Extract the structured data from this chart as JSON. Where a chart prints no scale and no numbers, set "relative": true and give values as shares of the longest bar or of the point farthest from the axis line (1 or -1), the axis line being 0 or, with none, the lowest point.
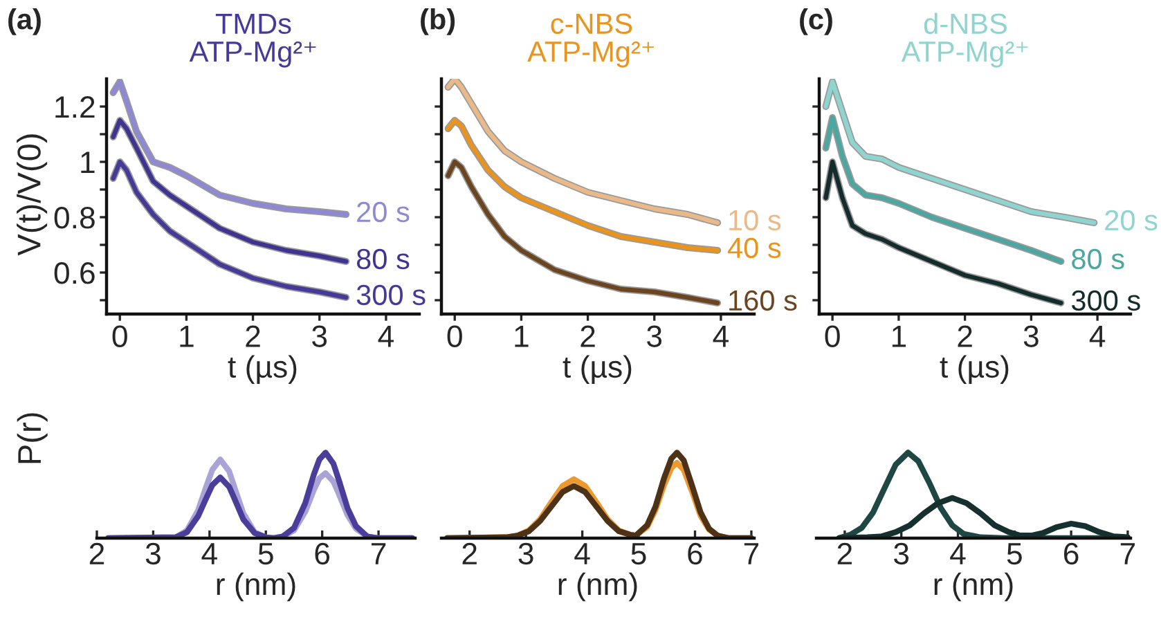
{
  "chart_data": [
    {
      "type": "line",
      "title": "TMDs\nATP-Mg²⁺",
      "annotations": [
        "(a)"
      ],
      "xlabel": "t (µs)",
      "ylabel": "V(t)/V(0)",
      "xlim": [
        -0.2,
        4.5
      ],
      "xticks": [
        0,
        1,
        2,
        3,
        4
      ],
      "ylim": [
        0.45,
        1.3
      ],
      "yticks": [
        {
          "value": 0.5,
          "label": null
        },
        0.6,
        {
          "value": 0.7,
          "label": null
        },
        0.8,
        {
          "value": 0.9,
          "label": null
        },
        1,
        {
          "value": 1.1,
          "label": null
        },
        1.2
      ],
      "series": [
        {
          "color": "#9a9a9a",
          "x": [
            -0.1,
            0,
            0.1,
            0.25,
            0.5,
            0.75,
            1,
            1.5,
            2,
            2.5,
            3,
            3.4
          ],
          "values": [
            1.25,
            1.29,
            1.22,
            1.11,
            1.0,
            0.98,
            0.95,
            0.88,
            0.85,
            0.83,
            0.82,
            0.81
          ]
        },
        {
          "name": "20 s",
          "color": "#8e89d2",
          "x": [
            -0.1,
            0,
            0.1,
            0.25,
            0.5,
            0.75,
            1,
            1.5,
            2,
            2.5,
            3,
            3.4
          ],
          "values": [
            1.25,
            1.29,
            1.22,
            1.11,
            1.0,
            0.98,
            0.95,
            0.88,
            0.85,
            0.83,
            0.82,
            0.81
          ]
        },
        {
          "color": "#9a9a9a",
          "x": [
            -0.1,
            0,
            0.1,
            0.25,
            0.5,
            0.75,
            1,
            1.5,
            2,
            2.5,
            3,
            3.4
          ],
          "values": [
            1.09,
            1.15,
            1.12,
            1.05,
            0.93,
            0.88,
            0.84,
            0.76,
            0.71,
            0.68,
            0.66,
            0.64
          ]
        },
        {
          "name": "80 s",
          "color": "#3f3590",
          "x": [
            -0.1,
            0,
            0.1,
            0.25,
            0.5,
            0.75,
            1,
            1.5,
            2,
            2.5,
            3,
            3.4
          ],
          "values": [
            1.09,
            1.15,
            1.12,
            1.05,
            0.93,
            0.88,
            0.84,
            0.76,
            0.71,
            0.68,
            0.66,
            0.64
          ]
        },
        {
          "color": "#9a9a9a",
          "x": [
            -0.1,
            0,
            0.1,
            0.25,
            0.5,
            0.75,
            1,
            1.5,
            2,
            2.5,
            3,
            3.4
          ],
          "values": [
            0.94,
            1.0,
            0.97,
            0.89,
            0.81,
            0.75,
            0.71,
            0.63,
            0.58,
            0.55,
            0.53,
            0.51
          ]
        },
        {
          "name": "300 s",
          "color": "#453a98",
          "x": [
            -0.1,
            0,
            0.1,
            0.25,
            0.5,
            0.75,
            1,
            1.5,
            2,
            2.5,
            3,
            3.4
          ],
          "values": [
            0.94,
            1.0,
            0.97,
            0.89,
            0.81,
            0.75,
            0.71,
            0.63,
            0.58,
            0.55,
            0.53,
            0.51
          ]
        }
      ]
    },
    {
      "type": "line",
      "title": "c-NBS\nATP-Mg²⁺",
      "annotations": [
        "(b)"
      ],
      "xlabel": "t (µs)",
      "xlim": [
        -0.2,
        4.5
      ],
      "xticks": [
        0,
        1,
        2,
        3,
        4
      ],
      "ylim": [
        0.45,
        1.3
      ],
      "yticks": [
        {
          "value": 0.5,
          "label": null
        },
        {
          "value": 0.6,
          "label": null
        },
        {
          "value": 0.7,
          "label": null
        },
        {
          "value": 0.8,
          "label": null
        },
        {
          "value": 0.9,
          "label": null
        },
        {
          "value": 1,
          "label": null
        },
        {
          "value": 1.1,
          "label": null
        },
        {
          "value": 1.2,
          "label": null
        }
      ],
      "tick_labels": "x",
      "series": [
        {
          "color": "#9a9a9a",
          "x": [
            -0.1,
            0,
            0.1,
            0.25,
            0.5,
            0.75,
            1,
            1.5,
            2,
            2.5,
            3,
            3.5,
            3.95
          ],
          "values": [
            1.27,
            1.3,
            1.27,
            1.21,
            1.11,
            1.04,
            1.0,
            0.94,
            0.89,
            0.86,
            0.83,
            0.81,
            0.78
          ]
        },
        {
          "name": "10 s",
          "color": "#eab98a",
          "x": [
            -0.1,
            0,
            0.1,
            0.25,
            0.5,
            0.75,
            1,
            1.5,
            2,
            2.5,
            3,
            3.5,
            3.95
          ],
          "values": [
            1.27,
            1.3,
            1.27,
            1.21,
            1.11,
            1.04,
            1.0,
            0.94,
            0.89,
            0.86,
            0.83,
            0.81,
            0.78
          ]
        },
        {
          "color": "#9a9a9a",
          "x": [
            -0.1,
            0,
            0.1,
            0.25,
            0.5,
            0.75,
            1,
            1.5,
            2,
            2.5,
            3,
            3.5,
            3.95
          ],
          "values": [
            1.12,
            1.15,
            1.13,
            1.06,
            0.97,
            0.91,
            0.87,
            0.82,
            0.77,
            0.73,
            0.71,
            0.69,
            0.68
          ]
        },
        {
          "name": "40 s",
          "color": "#e8941e",
          "x": [
            -0.1,
            0,
            0.1,
            0.25,
            0.5,
            0.75,
            1,
            1.5,
            2,
            2.5,
            3,
            3.5,
            3.95
          ],
          "values": [
            1.12,
            1.15,
            1.13,
            1.06,
            0.97,
            0.91,
            0.87,
            0.82,
            0.77,
            0.73,
            0.71,
            0.69,
            0.68
          ]
        },
        {
          "color": "#9a9a9a",
          "x": [
            -0.1,
            0,
            0.1,
            0.25,
            0.5,
            0.75,
            1,
            1.5,
            2,
            2.5,
            3,
            3.5,
            3.95
          ],
          "values": [
            0.95,
            1.0,
            0.98,
            0.91,
            0.81,
            0.73,
            0.68,
            0.61,
            0.57,
            0.54,
            0.53,
            0.51,
            0.49
          ]
        },
        {
          "name": "160 s",
          "color": "#6b4520",
          "x": [
            -0.1,
            0,
            0.1,
            0.25,
            0.5,
            0.75,
            1,
            1.5,
            2,
            2.5,
            3,
            3.5,
            3.95
          ],
          "values": [
            0.95,
            1.0,
            0.98,
            0.91,
            0.81,
            0.73,
            0.68,
            0.61,
            0.57,
            0.54,
            0.53,
            0.51,
            0.49
          ]
        }
      ]
    },
    {
      "type": "line",
      "title": "d-NBS\nATP-Mg²⁺",
      "annotations": [
        "(c)"
      ],
      "xlabel": "t (µs)",
      "xlim": [
        -0.2,
        4.5
      ],
      "xticks": [
        0,
        1,
        2,
        3,
        4
      ],
      "ylim": [
        0.45,
        1.3
      ],
      "yticks": [
        {
          "value": 0.5,
          "label": null
        },
        {
          "value": 0.6,
          "label": null
        },
        {
          "value": 0.7,
          "label": null
        },
        {
          "value": 0.8,
          "label": null
        },
        {
          "value": 0.9,
          "label": null
        },
        {
          "value": 1,
          "label": null
        },
        {
          "value": 1.1,
          "label": null
        },
        {
          "value": 1.2,
          "label": null
        }
      ],
      "tick_labels": "x",
      "series": [
        {
          "color": "#9a9a9a",
          "x": [
            -0.1,
            0,
            0.15,
            0.3,
            0.5,
            0.75,
            1,
            1.5,
            2,
            2.5,
            3,
            3.5,
            3.95
          ],
          "values": [
            1.2,
            1.29,
            1.18,
            1.07,
            1.02,
            1.01,
            0.98,
            0.94,
            0.9,
            0.86,
            0.82,
            0.8,
            0.78
          ]
        },
        {
          "name": "20 s",
          "color": "#8fd4ce",
          "x": [
            -0.1,
            0,
            0.15,
            0.3,
            0.5,
            0.75,
            1,
            1.5,
            2,
            2.5,
            3,
            3.5,
            3.95
          ],
          "values": [
            1.2,
            1.29,
            1.18,
            1.07,
            1.02,
            1.01,
            0.98,
            0.94,
            0.9,
            0.86,
            0.82,
            0.8,
            0.78
          ]
        },
        {
          "color": "#9a9a9a",
          "x": [
            -0.1,
            0,
            0.15,
            0.3,
            0.5,
            0.75,
            1,
            1.5,
            2,
            2.5,
            3,
            3.45
          ],
          "values": [
            1.05,
            1.16,
            1.02,
            0.92,
            0.88,
            0.87,
            0.85,
            0.8,
            0.76,
            0.72,
            0.68,
            0.64
          ]
        },
        {
          "name": "80 s",
          "color": "#4ea6a0",
          "x": [
            -0.1,
            0,
            0.15,
            0.3,
            0.5,
            0.75,
            1,
            1.5,
            2,
            2.5,
            3,
            3.45
          ],
          "values": [
            1.05,
            1.16,
            1.02,
            0.92,
            0.88,
            0.87,
            0.85,
            0.8,
            0.76,
            0.72,
            0.68,
            0.64
          ]
        },
        {
          "color": "#9a9a9a",
          "x": [
            -0.1,
            0,
            0.15,
            0.3,
            0.5,
            0.75,
            1,
            1.5,
            2,
            2.5,
            3,
            3.45
          ],
          "values": [
            0.87,
            1.0,
            0.87,
            0.77,
            0.74,
            0.72,
            0.69,
            0.64,
            0.59,
            0.56,
            0.52,
            0.49
          ]
        },
        {
          "name": "300 s",
          "color": "#142c2b",
          "x": [
            -0.1,
            0,
            0.15,
            0.3,
            0.5,
            0.75,
            1,
            1.5,
            2,
            2.5,
            3,
            3.45
          ],
          "values": [
            0.87,
            1.0,
            0.87,
            0.77,
            0.74,
            0.72,
            0.69,
            0.64,
            0.59,
            0.56,
            0.52,
            0.49
          ]
        }
      ]
    },
    {
      "type": "line",
      "relative": true,
      "ylabel": "P(r)",
      "xlabel": "r (nm)",
      "xlim": [
        2,
        7.65
      ],
      "xticks": [
        2,
        3,
        4,
        5,
        6,
        7
      ],
      "series": [
        {
          "color": "#aaa3d8",
          "x": [
            2.2,
            3.4,
            3.6,
            3.8,
            3.95,
            4.05,
            4.19,
            4.35,
            4.45,
            4.6,
            4.8,
            5.0,
            5.13,
            5.3,
            5.5,
            5.7,
            5.85,
            5.95,
            6.06,
            6.2,
            6.3,
            6.45,
            6.6,
            6.8,
            7.0,
            7.6
          ],
          "values": [
            0,
            0.01,
            0.09,
            0.33,
            0.62,
            0.8,
            0.92,
            0.78,
            0.58,
            0.29,
            0.07,
            0.01,
            0,
            0.02,
            0.09,
            0.31,
            0.56,
            0.7,
            0.76,
            0.66,
            0.51,
            0.27,
            0.11,
            0.02,
            0,
            0
          ]
        },
        {
          "color": "#4a3e9a",
          "x": [
            2.2,
            3.4,
            3.6,
            3.8,
            3.95,
            4.05,
            4.19,
            4.35,
            4.45,
            4.6,
            4.8,
            5.0,
            5.13,
            5.3,
            5.5,
            5.7,
            5.85,
            5.95,
            6.06,
            6.2,
            6.3,
            6.45,
            6.6,
            6.8,
            7.0,
            7.6
          ],
          "values": [
            0,
            0.01,
            0.07,
            0.26,
            0.48,
            0.62,
            0.71,
            0.6,
            0.45,
            0.22,
            0.06,
            0.01,
            0,
            0.02,
            0.12,
            0.41,
            0.74,
            0.92,
            1.0,
            0.87,
            0.67,
            0.35,
            0.14,
            0.02,
            0,
            0
          ]
        }
      ]
    },
    {
      "type": "line",
      "relative": true,
      "xlabel": "r (nm)",
      "xlim": [
        1.5,
        7.05
      ],
      "xticks": [
        2,
        3,
        4,
        5,
        6,
        7
      ],
      "series": [
        {
          "color": "#ec9a30",
          "x": [
            1.6,
            2.65,
            2.85,
            3.05,
            3.25,
            3.45,
            3.65,
            3.85,
            4.05,
            4.25,
            4.45,
            4.65,
            4.85,
            4.95,
            5.15,
            5.3,
            5.45,
            5.58,
            5.68,
            5.8,
            5.95,
            6.1,
            6.25,
            6.4,
            6.6,
            7.0
          ],
          "values": [
            0,
            0.01,
            0.03,
            0.09,
            0.22,
            0.42,
            0.61,
            0.69,
            0.61,
            0.42,
            0.22,
            0.09,
            0.04,
            0.03,
            0.13,
            0.33,
            0.62,
            0.82,
            0.88,
            0.8,
            0.54,
            0.26,
            0.1,
            0.03,
            0,
            0
          ]
        },
        {
          "color": "#4e3218",
          "x": [
            1.6,
            2.65,
            2.85,
            3.05,
            3.25,
            3.45,
            3.65,
            3.85,
            4.05,
            4.25,
            4.45,
            4.65,
            4.85,
            4.95,
            5.15,
            5.3,
            5.45,
            5.58,
            5.68,
            5.8,
            5.95,
            6.1,
            6.25,
            6.4,
            6.6,
            7.0
          ],
          "values": [
            0,
            0.01,
            0.03,
            0.08,
            0.2,
            0.37,
            0.54,
            0.61,
            0.54,
            0.37,
            0.2,
            0.08,
            0.04,
            0.03,
            0.15,
            0.37,
            0.7,
            0.93,
            1.0,
            0.91,
            0.61,
            0.3,
            0.11,
            0.03,
            0,
            0
          ]
        }
      ]
    },
    {
      "type": "line",
      "relative": true,
      "xlabel": "r (nm)",
      "xlim": [
        1.5,
        7.05
      ],
      "xticks": [
        2,
        3,
        4,
        5,
        6,
        7
      ],
      "series": [
        {
          "color": "#1f4744",
          "x": [
            1.9,
            2.1,
            2.3,
            2.5,
            2.7,
            2.9,
            3.12,
            3.3,
            3.5,
            3.7,
            3.9,
            4.1,
            4.4,
            4.8,
            7.0
          ],
          "values": [
            0,
            0.04,
            0.12,
            0.3,
            0.58,
            0.86,
            1.0,
            0.9,
            0.64,
            0.35,
            0.15,
            0.05,
            0.01,
            0,
            0
          ]
        },
        {
          "color": "#15302e",
          "x": [
            1.9,
            2.4,
            2.65,
            2.9,
            3.15,
            3.4,
            3.65,
            3.9,
            4.15,
            4.4,
            4.65,
            4.9,
            5.1,
            5.3,
            5.5,
            5.75,
            6.0,
            6.25,
            6.5,
            6.75,
            7.0
          ],
          "values": [
            0,
            0.01,
            0.02,
            0.07,
            0.15,
            0.29,
            0.41,
            0.47,
            0.41,
            0.29,
            0.15,
            0.07,
            0.03,
            0.03,
            0.06,
            0.13,
            0.17,
            0.14,
            0.07,
            0.02,
            0.01
          ]
        }
      ]
    }
  ]
}
